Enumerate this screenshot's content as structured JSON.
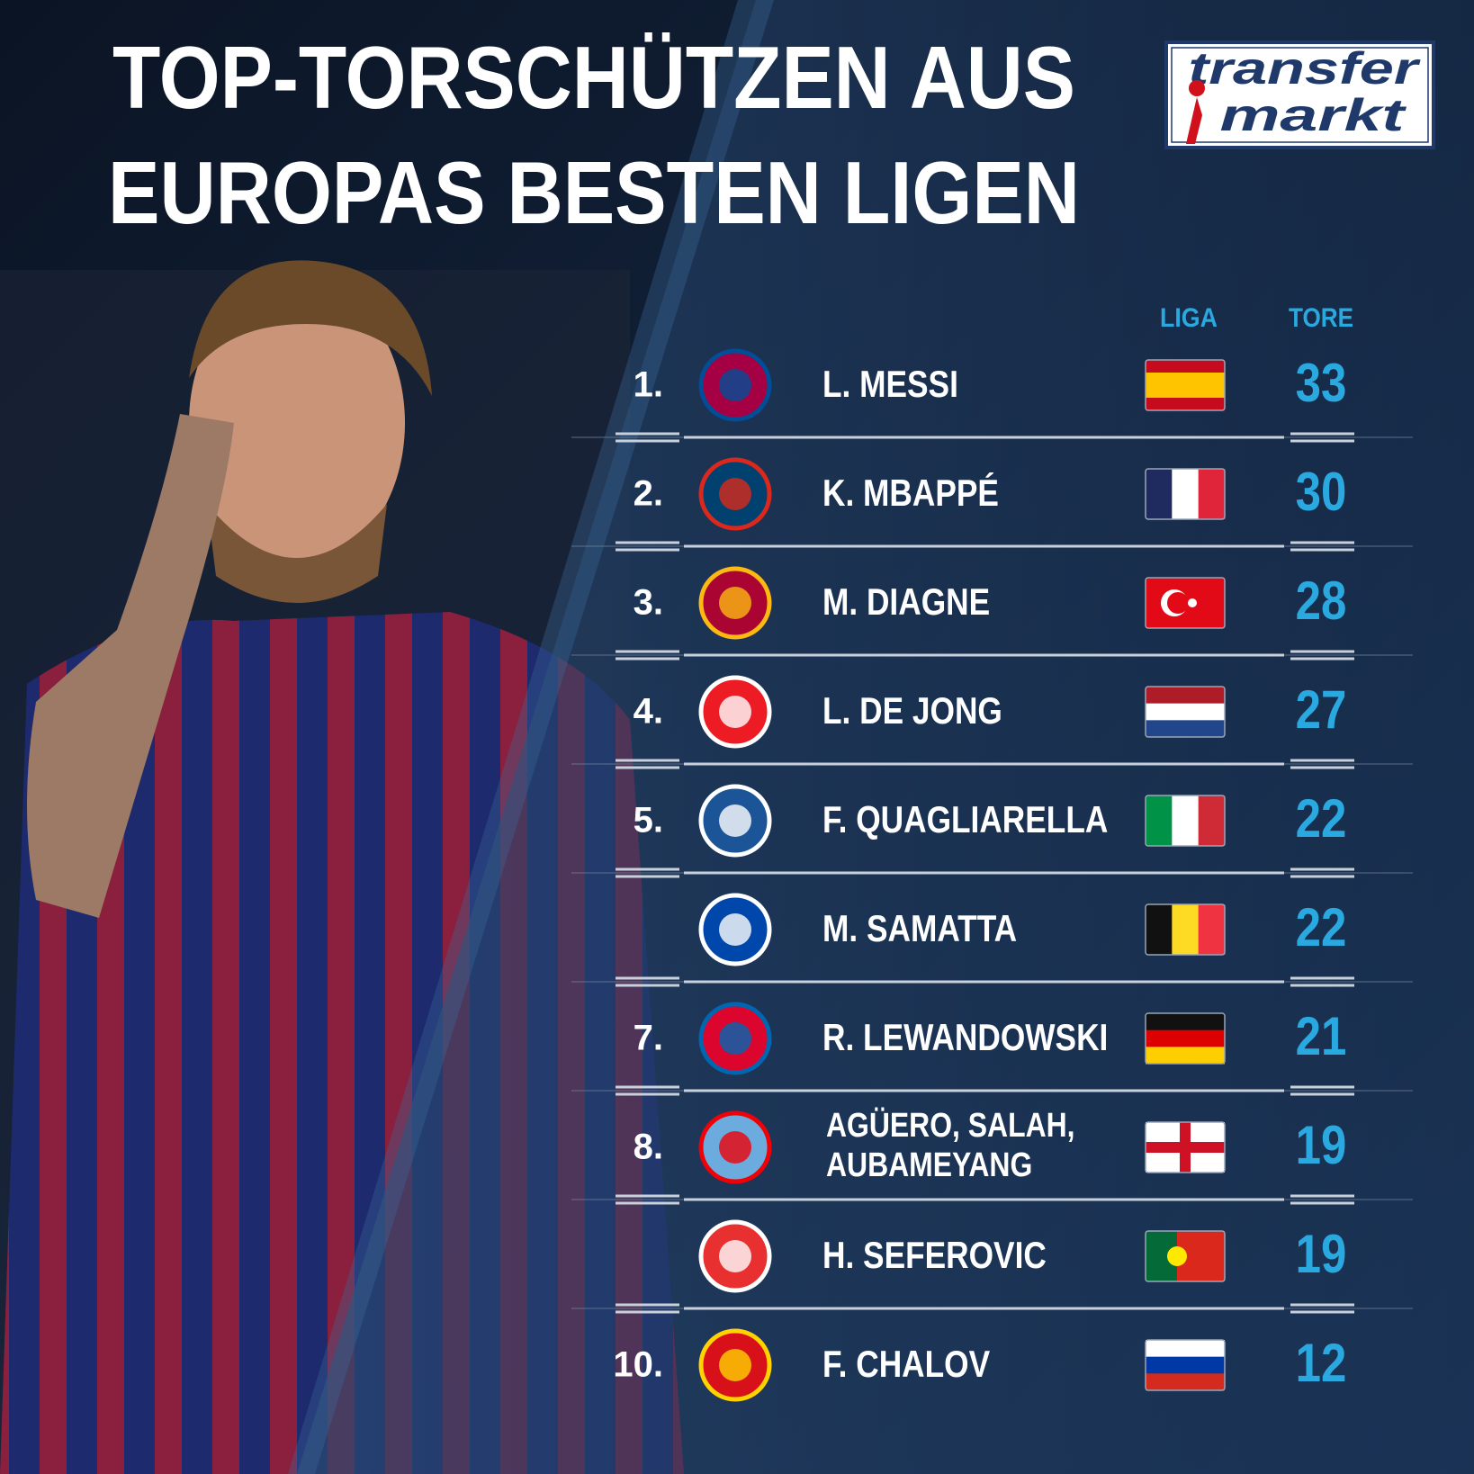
{
  "header": {
    "title_lines": [
      "TOP-TORSCHÜTZEN AUS",
      "EUROPAS BESTEN LIGEN"
    ],
    "logo": [
      "transfer",
      "markt"
    ]
  },
  "table": {
    "columns": [
      "LIGA",
      "TORE"
    ],
    "rows": [
      {
        "rank": "1.",
        "player": "L. MESSI",
        "goals": 33
      },
      {
        "rank": "2.",
        "player": "K. MBAPPÉ",
        "goals": 30
      },
      {
        "rank": "3.",
        "player": "M. DIAGNE",
        "goals": 28
      },
      {
        "rank": "4.",
        "player": "L. DE JONG",
        "goals": 27
      },
      {
        "rank": "5.",
        "player": "F. QUAGLIARELLA",
        "goals": 22
      },
      {
        "player": "M. SAMATTA",
        "goals": 22
      },
      {
        "rank": "7.",
        "player": "R. LEWANDOWSKI",
        "goals": 21
      },
      {
        "rank": "8.",
        "player": [
          "AGÜERO, SALAH,",
          "AUBAMEYANG"
        ],
        "goals": 19
      },
      {
        "player": "H. SEFEROVIC",
        "goals": 19
      },
      {
        "rank": "10.",
        "player": "F. CHALOV",
        "goals": 12
      }
    ]
  }
}
